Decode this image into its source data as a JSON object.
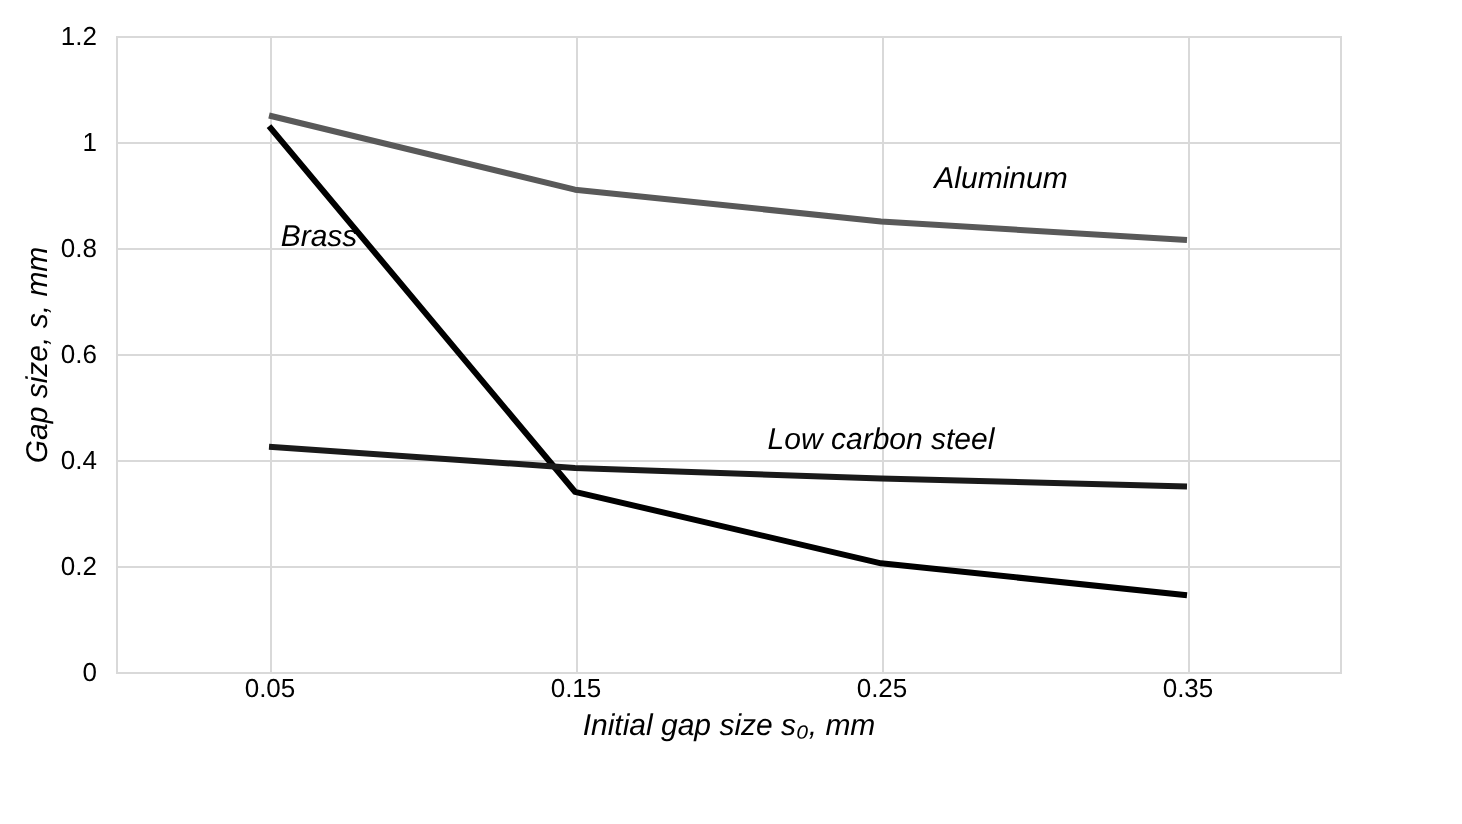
{
  "chart_data": {
    "type": "line",
    "xlabel": "Initial gap size s₀, mm",
    "ylabel": "Gap size, s, mm",
    "categories": [
      "0.05",
      "0.15",
      "0.25",
      "0.35"
    ],
    "series": [
      {
        "name": "Aluminum",
        "color": "#595959",
        "values": [
          1.05,
          0.91,
          0.85,
          0.815
        ]
      },
      {
        "name": "Brass",
        "color": "#000000",
        "values": [
          1.03,
          0.34,
          0.205,
          0.145
        ]
      },
      {
        "name": "Low carbon steel",
        "color": "#1a1a1a",
        "values": [
          0.425,
          0.385,
          0.365,
          0.35
        ]
      }
    ],
    "ylim": [
      0,
      1.2
    ],
    "yticks": [
      0,
      0.2,
      0.4,
      0.6,
      0.8,
      1,
      1.2
    ],
    "grid": true,
    "legend": false,
    "marker": "none",
    "line_style": "solid"
  }
}
